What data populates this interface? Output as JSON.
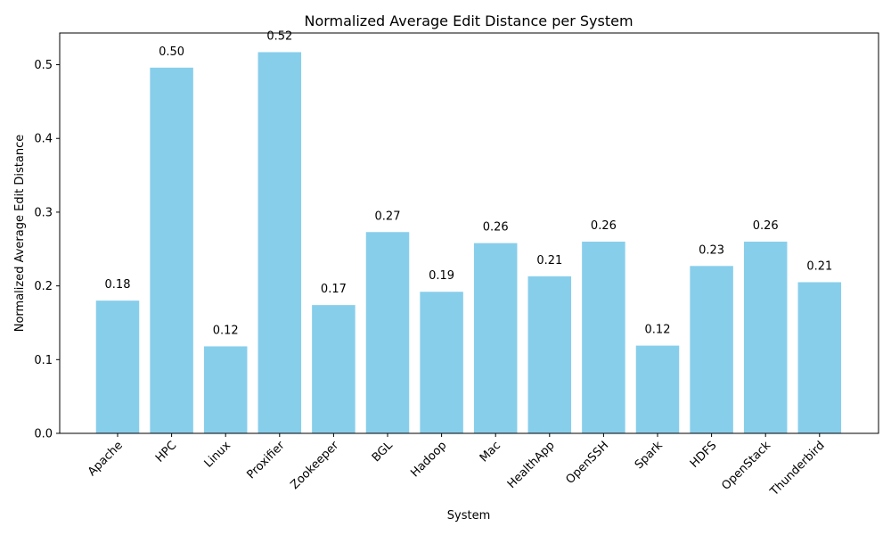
{
  "chart_data": {
    "type": "bar",
    "title": "Normalized Average Edit Distance per System",
    "xlabel": "System",
    "ylabel": "Normalized Average Edit Distance",
    "categories": [
      "Apache",
      "HPC",
      "Linux",
      "Proxifier",
      "Zookeeper",
      "BGL",
      "Hadoop",
      "Mac",
      "HealthApp",
      "OpenSSH",
      "Spark",
      "HDFS",
      "OpenStack",
      "Thunderbird"
    ],
    "values": [
      0.18,
      0.496,
      0.118,
      0.517,
      0.174,
      0.273,
      0.192,
      0.258,
      0.213,
      0.26,
      0.119,
      0.227,
      0.26,
      0.205
    ],
    "value_labels": [
      "0.18",
      "0.50",
      "0.12",
      "0.52",
      "0.17",
      "0.27",
      "0.19",
      "0.26",
      "0.21",
      "0.26",
      "0.12",
      "0.23",
      "0.26",
      "0.21"
    ],
    "ylim": [
      0,
      0.543
    ],
    "yticks": [
      0.0,
      0.1,
      0.2,
      0.3,
      0.4,
      0.5
    ],
    "ytick_labels": [
      "0.0",
      "0.1",
      "0.2",
      "0.3",
      "0.4",
      "0.5"
    ],
    "grid": false,
    "legend": "none",
    "bar_color": "#87ceeb",
    "x_tick_rotation": 45
  }
}
